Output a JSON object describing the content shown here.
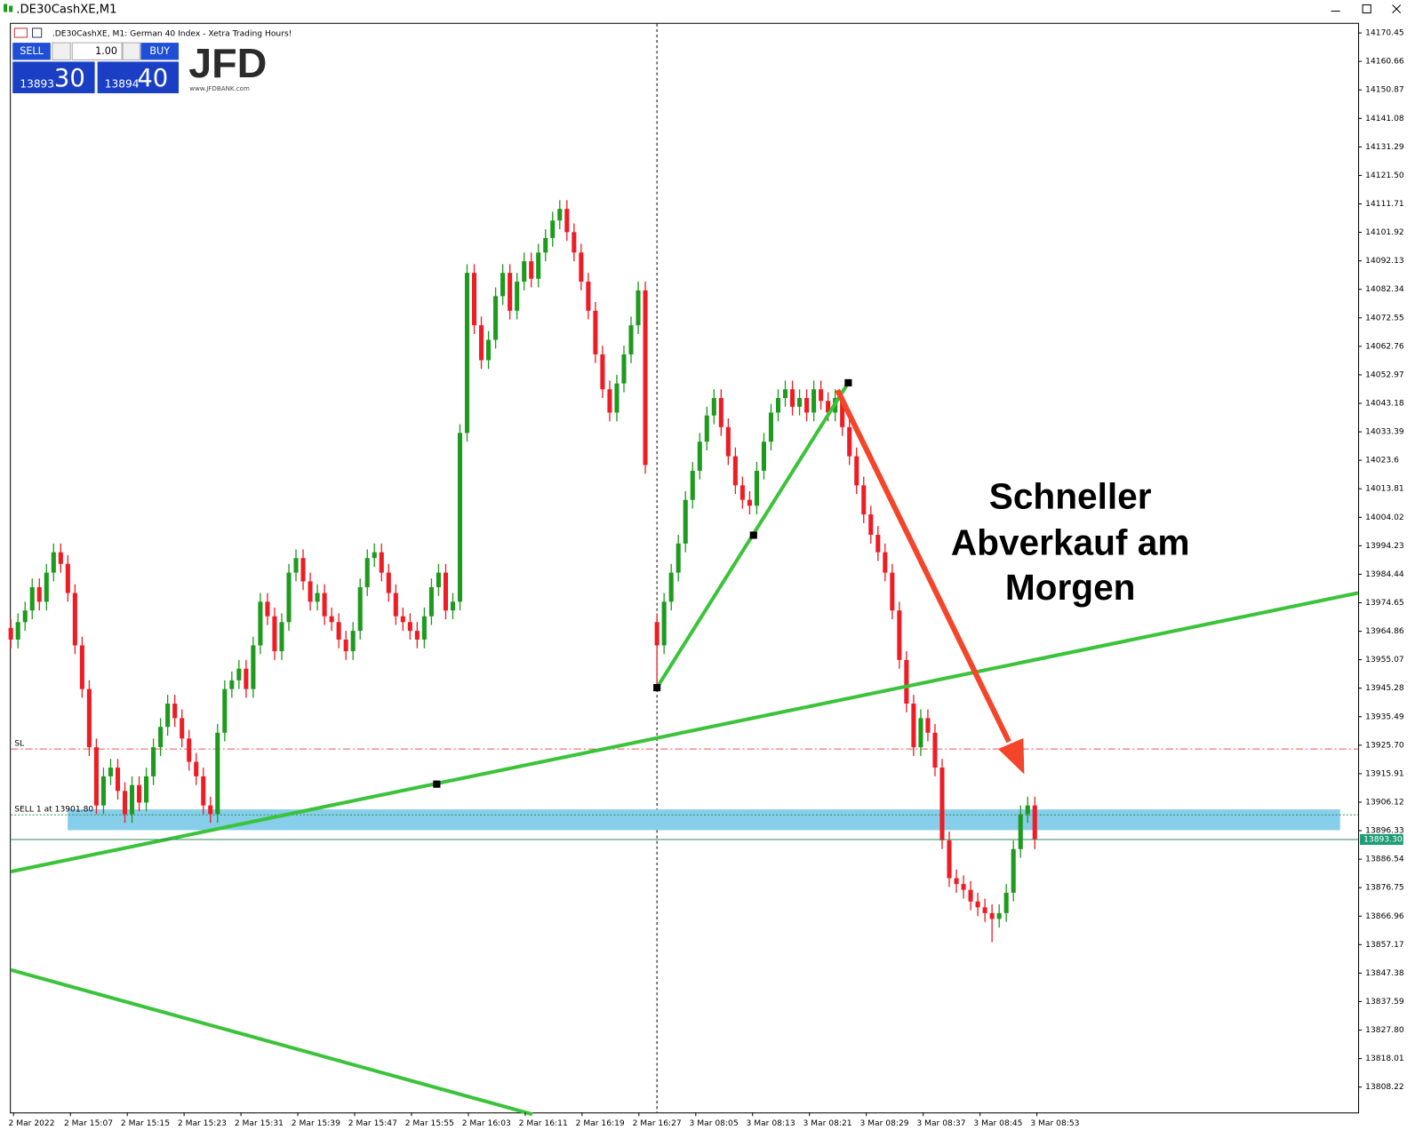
{
  "window_title": ".DE30CashXE,M1",
  "trade_panel": {
    "sell": "SELL",
    "buy": "BUY",
    "volume": "1.00",
    "bid_big": "13893",
    "bid_small": "30",
    "ask_big": "13894",
    "ask_small": "40"
  },
  "logo": {
    "name": "JFD",
    "url": "www.JFDBANK.com"
  },
  "chart_data": {
    "type": "candlestick",
    "title": ".DE30CashXE, M1:  German 40 Index  - Xetra Trading Hours!",
    "categories": [
      "2 Mar 2022",
      "2 Mar 15:07",
      "2 Mar 15:15",
      "2 Mar 15:23",
      "2 Mar 15:31",
      "2 Mar 15:39",
      "2 Mar 15:47",
      "2 Mar 15:55",
      "2 Mar 16:03",
      "2 Mar 16:11",
      "2 Mar 16:19",
      "2 Mar 16:27",
      "3 Mar 08:05",
      "3 Mar 08:13",
      "3 Mar 08:21",
      "3 Mar 08:29",
      "3 Mar 08:37",
      "3 Mar 08:45",
      "3 Mar 08:53"
    ],
    "open": [
      13966,
      13962,
      13968,
      13972,
      13980,
      13975,
      13985,
      13992,
      13988,
      13978,
      13960,
      13945,
      13925,
      13905,
      13915,
      13918,
      13910,
      13902,
      13912,
      13906,
      13915,
      13925,
      13932,
      13940,
      13935,
      13928,
      13920,
      13915,
      13905,
      13902,
      13930,
      13945,
      13948,
      13952,
      13945,
      13960,
      13975,
      13970,
      13958,
      13968,
      13985,
      13990,
      13982,
      13975,
      13978,
      13970,
      13968,
      13962,
      13958,
      13965,
      13980,
      13990,
      13992,
      13985,
      13978,
      13970,
      13968,
      13965,
      13962,
      13970,
      13980,
      13985,
      13972,
      13975,
      14033,
      14088,
      14070,
      14058,
      14065,
      14080,
      14088,
      14075,
      14085,
      14092,
      14086,
      14095,
      14100,
      14106,
      14110,
      14102,
      14095,
      14085,
      14075,
      14060,
      14048,
      14040,
      14050,
      14060,
      14070,
      14082,
      13968,
      13960,
      13975,
      13985,
      13995,
      14010,
      14020,
      14030,
      14039,
      14045,
      14035,
      14025,
      14015,
      14010,
      14008,
      14020,
      14030,
      14040,
      14045,
      14048,
      14042,
      14045,
      14040,
      14048,
      14044,
      14040,
      14045,
      14035,
      14025,
      14015,
      14005,
      13998,
      13992,
      13985,
      13972,
      13955,
      13940,
      13925,
      13935,
      13930,
      13918,
      13893,
      13880,
      13878,
      13876,
      13872,
      13870,
      13868,
      13866,
      13868,
      13875,
      13890,
      13902,
      13905
    ],
    "high": [
      13969,
      13971,
      13975,
      13983,
      13983,
      13988,
      13995,
      13995,
      13991,
      13981,
      13963,
      13948,
      13928,
      13918,
      13921,
      13921,
      13913,
      13915,
      13915,
      13918,
      13928,
      13935,
      13943,
      13943,
      13938,
      13931,
      13923,
      13918,
      13908,
      13933,
      13948,
      13951,
      13955,
      13955,
      13963,
      13978,
      13978,
      13973,
      13971,
      13988,
      13993,
      13993,
      13985,
      13981,
      13981,
      13973,
      13971,
      13965,
      13968,
      13983,
      13993,
      13995,
      13995,
      13988,
      13981,
      13973,
      13971,
      13968,
      13973,
      13983,
      13988,
      13988,
      13978,
      14036,
      14091,
      14091,
      14073,
      14068,
      14083,
      14091,
      14091,
      14088,
      14095,
      14095,
      14098,
      14103,
      14109,
      14113,
      14113,
      14105,
      14098,
      14088,
      14078,
      14063,
      14051,
      14053,
      14063,
      14073,
      14085,
      14085,
      13971,
      13978,
      13988,
      13998,
      14013,
      14023,
      14033,
      14042,
      14048,
      14048,
      14038,
      14028,
      14018,
      14013,
      14023,
      14033,
      14043,
      14048,
      14051,
      14051,
      14048,
      14048,
      14051,
      14051,
      14047,
      14048,
      14048,
      14038,
      14028,
      14018,
      14008,
      14001,
      13995,
      13988,
      13975,
      13958,
      13943,
      13938,
      13938,
      13933,
      13921,
      13896,
      13883,
      13881,
      13879,
      13875,
      13873,
      13871,
      13871,
      13878,
      13893,
      13905,
      13908,
      13908
    ],
    "low": [
      13959,
      13959,
      13965,
      13969,
      13972,
      13972,
      13982,
      13985,
      13975,
      13957,
      13942,
      13922,
      13902,
      13902,
      13912,
      13907,
      13899,
      13899,
      13903,
      13903,
      13912,
      13922,
      13929,
      13932,
      13925,
      13917,
      13912,
      13902,
      13899,
      13899,
      13927,
      13942,
      13945,
      13942,
      13942,
      13957,
      13967,
      13955,
      13955,
      13965,
      13982,
      13979,
      13972,
      13972,
      13967,
      13965,
      13959,
      13955,
      13955,
      13962,
      13977,
      13987,
      13982,
      13975,
      13967,
      13965,
      13962,
      13959,
      13959,
      13967,
      13977,
      13969,
      13969,
      13972,
      14030,
      14067,
      14055,
      14055,
      14062,
      14077,
      14072,
      14072,
      14082,
      14083,
      14083,
      14092,
      14097,
      14103,
      14099,
      14092,
      14082,
      14072,
      14057,
      14045,
      14037,
      14037,
      14047,
      14057,
      14067,
      14019,
      13945,
      13957,
      13972,
      13982,
      13992,
      14007,
      14017,
      14027,
      14036,
      14032,
      14022,
      14012,
      14007,
      14005,
      14005,
      14017,
      14027,
      14037,
      14042,
      14039,
      14039,
      14037,
      14037,
      14041,
      14037,
      14037,
      14032,
      14022,
      14012,
      14002,
      13995,
      13989,
      13982,
      13969,
      13952,
      13937,
      13922,
      13922,
      13927,
      13915,
      13890,
      13877,
      13875,
      13873,
      13869,
      13867,
      13865,
      13858,
      13863,
      13865,
      13872,
      13887,
      13899,
      13890
    ],
    "close": [
      13962,
      13968,
      13972,
      13980,
      13975,
      13985,
      13992,
      13988,
      13978,
      13960,
      13945,
      13925,
      13905,
      13915,
      13918,
      13910,
      13902,
      13912,
      13906,
      13915,
      13925,
      13932,
      13940,
      13935,
      13928,
      13920,
      13915,
      13905,
      13902,
      13930,
      13945,
      13948,
      13952,
      13945,
      13960,
      13975,
      13970,
      13958,
      13968,
      13985,
      13990,
      13982,
      13975,
      13978,
      13970,
      13968,
      13962,
      13958,
      13965,
      13980,
      13990,
      13992,
      13985,
      13978,
      13970,
      13968,
      13965,
      13962,
      13970,
      13980,
      13985,
      13972,
      13975,
      14033,
      14088,
      14070,
      14058,
      14065,
      14080,
      14088,
      14075,
      14085,
      14092,
      14086,
      14095,
      14100,
      14106,
      14110,
      14102,
      14095,
      14085,
      14075,
      14060,
      14048,
      14040,
      14050,
      14060,
      14070,
      14082,
      14022,
      13960,
      13975,
      13985,
      13995,
      14010,
      14020,
      14030,
      14039,
      14045,
      14035,
      14025,
      14015,
      14010,
      14008,
      14020,
      14030,
      14040,
      14045,
      14048,
      14042,
      14045,
      14040,
      14048,
      14044,
      14040,
      14045,
      14035,
      14025,
      14015,
      14005,
      13998,
      13992,
      13985,
      13972,
      13955,
      13940,
      13925,
      13935,
      13930,
      13918,
      13893,
      13880,
      13878,
      13876,
      13872,
      13870,
      13868,
      13866,
      13868,
      13875,
      13890,
      13902,
      13905,
      13893.3
    ],
    "up_color": "#1e9a1e",
    "down_color": "#ee1d25",
    "ylim": [
      13799.5,
      14173.6
    ],
    "yticks": [
      14170.45,
      14160.66,
      14150.87,
      14141.08,
      14131.29,
      {
        "value": 14121.5,
        "label": "14121.50"
      },
      14111.71,
      14101.92,
      14092.13,
      14082.34,
      14072.55,
      14062.76,
      14052.97,
      14043.18,
      14033.39,
      14023.6,
      14013.81,
      14004.02,
      13994.23,
      13984.44,
      13974.65,
      13964.86,
      13955.07,
      13945.28,
      13935.49,
      {
        "value": 13925.7,
        "label": "13925.70"
      },
      13915.91,
      13906.12,
      13896.33,
      13886.54,
      13876.75,
      13866.96,
      13857.17,
      13847.38,
      13837.59,
      {
        "value": 13827.8,
        "label": "13827.80"
      },
      13818.01,
      13808.22
    ],
    "grid": false,
    "annotation": [
      "Schneller",
      "Abverkauf am",
      "Morgen"
    ],
    "sl_label": "SL",
    "order_label": "SELL 1 at 13901.80",
    "price_label": {
      "value": 13893.3,
      "label": "13893.30"
    }
  }
}
